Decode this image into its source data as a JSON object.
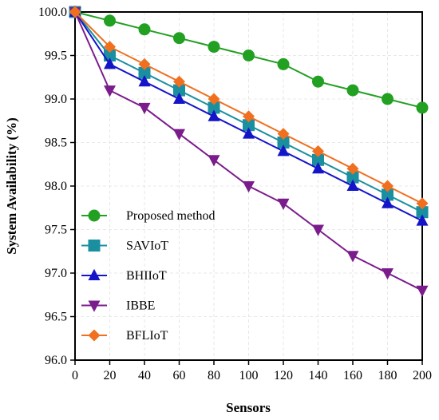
{
  "chart_data": {
    "type": "line",
    "xlabel": "Sensors",
    "ylabel": "System Availability (%)",
    "x": [
      0,
      20,
      40,
      60,
      80,
      100,
      120,
      140,
      160,
      180,
      200
    ],
    "xlim": [
      0,
      200
    ],
    "ylim": [
      96.0,
      100.0
    ],
    "x_ticks": [
      "0",
      "20",
      "40",
      "60",
      "80",
      "100",
      "120",
      "140",
      "160",
      "180",
      "200"
    ],
    "y_ticks": [
      "96.0",
      "96.5",
      "97.0",
      "97.5",
      "98.0",
      "98.5",
      "99.0",
      "99.5",
      "100.0"
    ],
    "grid": true,
    "legend_position": "bottom-left",
    "series": [
      {
        "name": "Proposed method",
        "color": "#22a022",
        "marker": "circle",
        "values": [
          100.0,
          99.9,
          99.8,
          99.7,
          99.6,
          99.5,
          99.4,
          99.2,
          99.1,
          99.0,
          98.9
        ]
      },
      {
        "name": "SAVIoT",
        "color": "#1a8fa0",
        "marker": "square",
        "values": [
          100.0,
          99.5,
          99.3,
          99.1,
          98.9,
          98.7,
          98.5,
          98.3,
          98.1,
          97.9,
          97.7
        ]
      },
      {
        "name": "BHIIoT",
        "color": "#1414c8",
        "marker": "triangle-up",
        "values": [
          100.0,
          99.4,
          99.2,
          99.0,
          98.8,
          98.6,
          98.4,
          98.2,
          98.0,
          97.8,
          97.6
        ]
      },
      {
        "name": "IBBE",
        "color": "#7b1c8c",
        "marker": "triangle-down",
        "values": [
          100.0,
          99.1,
          98.9,
          98.6,
          98.3,
          98.0,
          97.8,
          97.5,
          97.2,
          97.0,
          96.8
        ]
      },
      {
        "name": "BFLIoT",
        "color": "#f07020",
        "marker": "diamond",
        "values": [
          100.0,
          99.6,
          99.4,
          99.2,
          99.0,
          98.8,
          98.6,
          98.4,
          98.2,
          98.0,
          97.8
        ]
      }
    ]
  }
}
